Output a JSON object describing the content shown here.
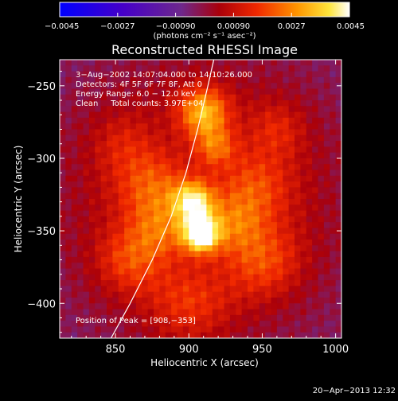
{
  "chart_data": {
    "type": "heatmap",
    "title": "Reconstructed RHESSI Image",
    "xlabel": "Heliocentric X (arcsec)",
    "ylabel": "Heliocentric Y (arcsec)",
    "xlim": [
      812,
      1004
    ],
    "ylim": [
      -424,
      -232
    ],
    "xticks": [
      850,
      900,
      950,
      1000
    ],
    "xtick_labels": [
      "850",
      "900",
      "950",
      "1000"
    ],
    "yticks": [
      -250,
      -300,
      -350,
      -400
    ],
    "ytick_labels": [
      "−250",
      "−300",
      "−350",
      "−400"
    ],
    "colorbar": {
      "range": [
        -0.0045,
        0.0045
      ],
      "ticks": [
        -0.0045,
        -0.0027,
        -0.0009,
        0.0009,
        0.0027,
        0.0045
      ],
      "tick_labels": [
        "−0.0045",
        "−0.0027",
        "−0.00090",
        "0.00090",
        "0.0027",
        "0.0045"
      ],
      "unit_label": "(photons cm⁻² s⁻¹ asec⁻²)"
    },
    "annotations": [
      "3−Aug−2002 14:07:04.000 to 14:10:26.000",
      "Detectors: 4F 5F 6F 7F 8F, Att 0",
      "Energy Range: 6.0 − 12.0 keV",
      "Clean     Total counts: 3.97E+04"
    ],
    "peak_label": "Position of Peak = [908,−353]",
    "peak": [
      908,
      -353
    ],
    "limb_points": [
      [
        847,
        -424
      ],
      [
        860,
        -400
      ],
      [
        875,
        -370
      ],
      [
        888,
        -340
      ],
      [
        898,
        -310
      ],
      [
        906,
        -280
      ],
      [
        913,
        -250
      ],
      [
        917,
        -232
      ]
    ],
    "intensity_sources": [
      {
        "x": 908,
        "y": -352,
        "sigma": 9,
        "amp": 0.0045
      },
      {
        "x": 903,
        "y": -330,
        "sigma": 10,
        "amp": 0.0034
      },
      {
        "x": 910,
        "y": -268,
        "sigma": 12,
        "amp": 0.003
      },
      {
        "x": 918,
        "y": -292,
        "sigma": 10,
        "amp": 0.0018
      },
      {
        "x": 875,
        "y": -320,
        "sigma": 18,
        "amp": 0.0018
      },
      {
        "x": 945,
        "y": -320,
        "sigma": 18,
        "amp": 0.0016
      },
      {
        "x": 860,
        "y": -370,
        "sigma": 16,
        "amp": 0.0015
      },
      {
        "x": 950,
        "y": -370,
        "sigma": 18,
        "amp": 0.0016
      },
      {
        "x": 900,
        "y": -400,
        "sigma": 20,
        "amp": 0.0013
      },
      {
        "x": 960,
        "y": -280,
        "sigma": 14,
        "amp": 0.001
      },
      {
        "x": 855,
        "y": -290,
        "sigma": 15,
        "amp": 0.0008
      },
      {
        "x": 930,
        "y": -345,
        "sigma": 14,
        "amp": 0.0014
      },
      {
        "x": 880,
        "y": -350,
        "sigma": 14,
        "amp": 0.0014
      }
    ]
  },
  "footer_timestamp": "20−Apr−2013 12:32"
}
